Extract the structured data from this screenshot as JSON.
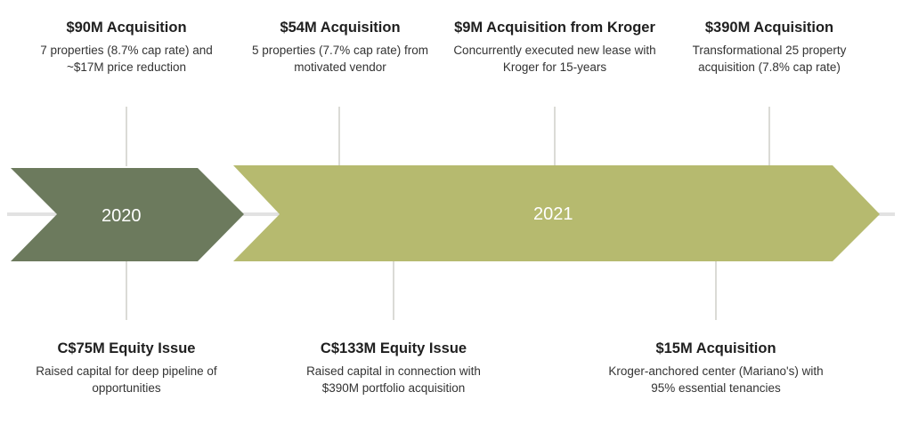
{
  "colors": {
    "arrow_2020": "#6c7a5d",
    "arrow_2021": "#b6ba6f",
    "connector": "#b7b7ad",
    "axis_line": "#e2e2e2"
  },
  "timeline": {
    "year_2020": "2020",
    "year_2021": "2021"
  },
  "events_top": [
    {
      "title": "$90M Acquisition",
      "desc": "7 properties (8.7% cap rate) and ~$17M price reduction"
    },
    {
      "title": "$54M Acquisition",
      "desc": "5 properties (7.7% cap rate) from motivated vendor"
    },
    {
      "title": "$9M Acquisition from Kroger",
      "desc": "Concurrently executed new lease with Kroger for 15-years"
    },
    {
      "title": "$390M Acquisition",
      "desc": "Transformational 25 property acquisition (7.8% cap rate)"
    }
  ],
  "events_bottom": [
    {
      "title": "C$75M Equity Issue",
      "desc": "Raised capital for deep pipeline of opportunities"
    },
    {
      "title": "C$133M Equity Issue",
      "desc": "Raised capital in connection with $390M portfolio acquisition"
    },
    {
      "title": "$15M Acquisition",
      "desc": "Kroger-anchored center (Mariano's) with 95% essential tenancies"
    }
  ]
}
